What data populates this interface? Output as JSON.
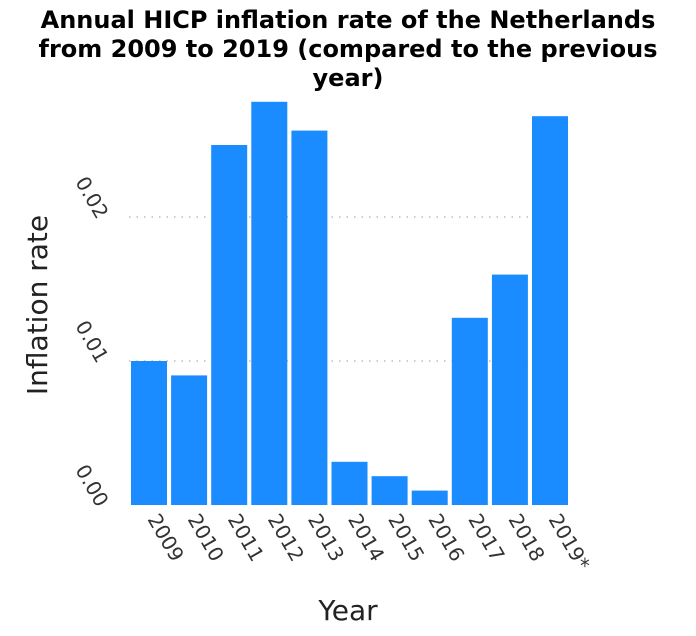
{
  "chart_data": {
    "type": "bar",
    "title_lines": [
      "Annual HICP inflation rate of the Netherlands",
      "from 2009 to 2019 (compared to the previous",
      "year)"
    ],
    "xlabel": "Year",
    "ylabel": "Inflation rate",
    "categories": [
      "2009",
      "2010",
      "2011",
      "2012",
      "2013",
      "2014",
      "2015",
      "2016",
      "2017",
      "2018",
      "2019*"
    ],
    "values": [
      0.01,
      0.009,
      0.025,
      0.028,
      0.026,
      0.003,
      0.002,
      0.001,
      0.013,
      0.016,
      0.027
    ],
    "yticks": [
      "0.00",
      "0.01",
      "0.02"
    ],
    "ylim": [
      0,
      0.028
    ],
    "grid": "horizontal dotted",
    "bar_color": "#1a8cff",
    "grid_color": "#999999"
  }
}
